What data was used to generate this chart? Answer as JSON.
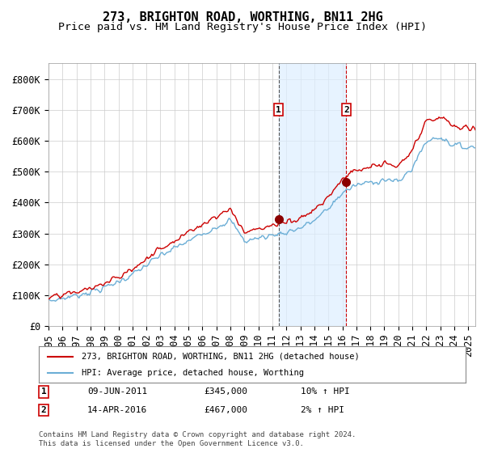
{
  "title": "273, BRIGHTON ROAD, WORTHING, BN11 2HG",
  "subtitle": "Price paid vs. HM Land Registry's House Price Index (HPI)",
  "xlabel": "",
  "ylabel": "",
  "ylim": [
    0,
    850000
  ],
  "yticks": [
    0,
    100000,
    200000,
    300000,
    400000,
    500000,
    600000,
    700000,
    800000
  ],
  "ytick_labels": [
    "£0",
    "£100K",
    "£200K",
    "£300K",
    "£400K",
    "£500K",
    "£600K",
    "£700K",
    "£800K"
  ],
  "hpi_color": "#6baed6",
  "price_color": "#cc0000",
  "marker_color": "#8b0000",
  "background_color": "#ffffff",
  "grid_color": "#cccccc",
  "shade_color": "#ddeeff",
  "event1_date_num": 2011.44,
  "event1_price": 345000,
  "event1_label": "1",
  "event1_text": "09-JUN-2011",
  "event1_price_text": "£345,000",
  "event1_pct": "10% ↑ HPI",
  "event2_date_num": 2016.28,
  "event2_price": 467000,
  "event2_label": "2",
  "event2_text": "14-APR-2016",
  "event2_price_text": "£467,000",
  "event2_pct": "2% ↑ HPI",
  "legend_line1": "273, BRIGHTON ROAD, WORTHING, BN11 2HG (detached house)",
  "legend_line2": "HPI: Average price, detached house, Worthing",
  "footnote": "Contains HM Land Registry data © Crown copyright and database right 2024.\nThis data is licensed under the Open Government Licence v3.0.",
  "title_fontsize": 11,
  "subtitle_fontsize": 9.5,
  "tick_fontsize": 8.5,
  "xtick_years": [
    1995,
    1996,
    1997,
    1998,
    1999,
    2000,
    2001,
    2002,
    2003,
    2004,
    2005,
    2006,
    2007,
    2008,
    2009,
    2010,
    2011,
    2012,
    2013,
    2014,
    2015,
    2016,
    2017,
    2018,
    2019,
    2020,
    2021,
    2022,
    2023,
    2024,
    2025
  ]
}
